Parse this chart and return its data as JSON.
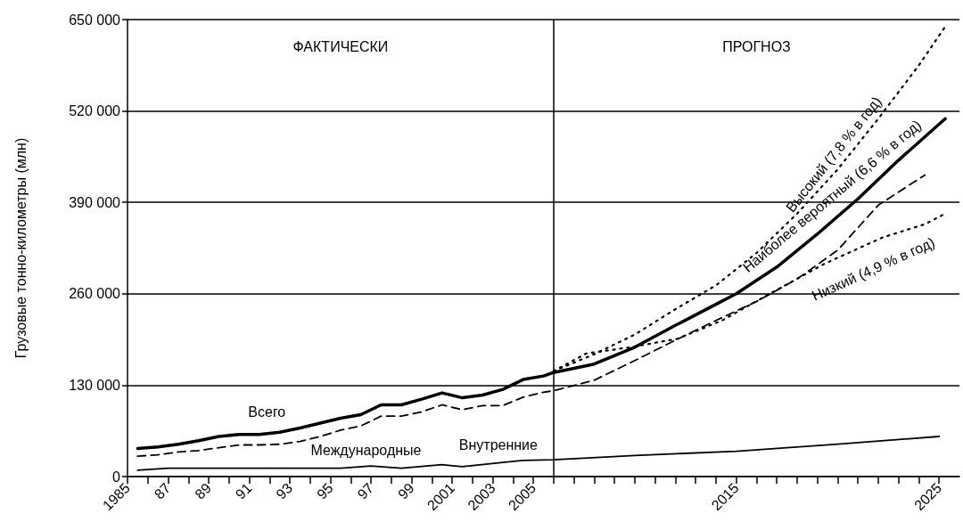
{
  "chart_data": {
    "type": "line",
    "ylabel": "Грузовые тонно-километры (млн)",
    "xlim": [
      1985,
      2026
    ],
    "ylim": [
      0,
      650000
    ],
    "xticks": [
      {
        "value": 1985,
        "label": "1985"
      },
      {
        "value": 1986,
        "label": null
      },
      {
        "value": 1987,
        "label": "87"
      },
      {
        "value": 1988,
        "label": null
      },
      {
        "value": 1989,
        "label": "89"
      },
      {
        "value": 1990,
        "label": null
      },
      {
        "value": 1991,
        "label": "91"
      },
      {
        "value": 1992,
        "label": null
      },
      {
        "value": 1993,
        "label": "93"
      },
      {
        "value": 1994,
        "label": null
      },
      {
        "value": 1995,
        "label": "95"
      },
      {
        "value": 1996,
        "label": null
      },
      {
        "value": 1997,
        "label": "97"
      },
      {
        "value": 1998,
        "label": null
      },
      {
        "value": 1999,
        "label": "99"
      },
      {
        "value": 2000,
        "label": null
      },
      {
        "value": 2001,
        "label": "2001"
      },
      {
        "value": 2002,
        "label": null
      },
      {
        "value": 2003,
        "label": "2003"
      },
      {
        "value": 2004,
        "label": null
      },
      {
        "value": 2005,
        "label": "2005"
      },
      {
        "value": 2006,
        "label": null
      },
      {
        "value": 2007,
        "label": null
      },
      {
        "value": 2008,
        "label": null
      },
      {
        "value": 2009,
        "label": null
      },
      {
        "value": 2010,
        "label": null
      },
      {
        "value": 2011,
        "label": null
      },
      {
        "value": 2012,
        "label": null
      },
      {
        "value": 2013,
        "label": null
      },
      {
        "value": 2014,
        "label": null
      },
      {
        "value": 2015,
        "label": "2015"
      },
      {
        "value": 2016,
        "label": null
      },
      {
        "value": 2017,
        "label": null
      },
      {
        "value": 2018,
        "label": null
      },
      {
        "value": 2019,
        "label": null
      },
      {
        "value": 2020,
        "label": null
      },
      {
        "value": 2021,
        "label": null
      },
      {
        "value": 2022,
        "label": null
      },
      {
        "value": 2023,
        "label": null
      },
      {
        "value": 2024,
        "label": null
      },
      {
        "value": 2025,
        "label": "2025"
      }
    ],
    "yticks": [
      0,
      {
        "value": 130000,
        "label": "130 000"
      },
      {
        "value": 260000,
        "label": "260 000"
      },
      {
        "value": 390000,
        "label": "390 000"
      },
      {
        "value": 520000,
        "label": "520 000"
      },
      {
        "value": 650000,
        "label": "650 000"
      }
    ],
    "grid": "y",
    "legend": false,
    "marker": "none",
    "series": [
      {
        "name": "Всего",
        "color": "#000000",
        "line_style": "solid",
        "x": [
          1985.5,
          1986.5,
          1987.5,
          1988.5,
          1989.5,
          1990.5,
          1991.5,
          1992.5,
          1993.5,
          1994.5,
          1995.5,
          1996.5,
          1997.5,
          1998.5,
          1999.5,
          2000.5,
          2001.5,
          2002.5,
          2003.5,
          2004.5,
          2005.5,
          2006,
          2008,
          2010,
          2012,
          2014,
          2015,
          2017,
          2019,
          2021,
          2023,
          2025.3
        ],
        "values": [
          40000,
          42000,
          46000,
          51000,
          57000,
          60000,
          60000,
          63000,
          69000,
          76000,
          83000,
          88000,
          102000,
          102000,
          110000,
          119000,
          112000,
          116000,
          124000,
          138000,
          143000,
          148000,
          160000,
          184000,
          215000,
          245000,
          260000,
          298000,
          345000,
          395000,
          450000,
          509000
        ]
      },
      {
        "name": "Международные",
        "color": "#000000",
        "line_style": "dashed",
        "x": [
          1985.5,
          1986.5,
          1987.5,
          1988.5,
          1989.5,
          1990.5,
          1991.5,
          1992.5,
          1993.5,
          1994.5,
          1995.5,
          1996.5,
          1997.5,
          1998.5,
          1999.5,
          2000.5,
          2001.5,
          2002.5,
          2003.5,
          2004.5,
          2005.5,
          2006,
          2008,
          2010,
          2012,
          2014,
          2016,
          2018,
          2020,
          2022,
          2024.3
        ],
        "values": [
          29000,
          31000,
          35000,
          37000,
          41000,
          45000,
          45000,
          46000,
          50000,
          57000,
          66000,
          72000,
          86000,
          86000,
          92000,
          102000,
          95000,
          101000,
          101000,
          113000,
          120000,
          122000,
          137000,
          165000,
          194000,
          222000,
          249000,
          281000,
          322000,
          386000,
          429000
        ]
      },
      {
        "name": "Внутренние",
        "color": "#000000",
        "line_style": "solid",
        "x": [
          1985.5,
          1987,
          1995.5,
          1997,
          1998.5,
          2000.5,
          2001.5,
          2003.5,
          2004.5,
          2006,
          2010,
          2015,
          2020,
          2025
        ],
        "values": [
          9000,
          12000,
          12000,
          15000,
          12000,
          17000,
          14000,
          20000,
          23000,
          24000,
          30000,
          36000,
          46000,
          57000
        ]
      },
      {
        "name": "Высокий (7,8 % в год)",
        "color": "#000000",
        "line_style": "dotted",
        "x": [
          2006,
          2008,
          2010,
          2012,
          2014,
          2016,
          2018,
          2020,
          2022,
          2024,
          2025.3
        ],
        "values": [
          150000,
          174000,
          202000,
          238000,
          272000,
          318000,
          374000,
          437000,
          509000,
          585000,
          640000
        ]
      },
      {
        "name": "Низкий (4,9 % в год)",
        "color": "#000000",
        "line_style": "dotted",
        "x": [
          2006,
          2007.6,
          2009.8,
          2012.1,
          2014.3,
          2016.4,
          2019.3,
          2022.2,
          2024.3,
          2025.3
        ],
        "values": [
          150000,
          175000,
          184000,
          196000,
          222000,
          256000,
          302000,
          340000,
          359000,
          374000
        ]
      }
    ],
    "ref_lines": [
      {
        "axis": "x",
        "value": 2006,
        "color": "#000000"
      }
    ],
    "annotations": [
      "ФАКТИЧЕСКИ",
      "ПРОГНОЗ",
      {
        "text": "Наиболее вероятный (6,6 % в год)",
        "x": 2019,
        "y": 345000
      }
    ]
  }
}
